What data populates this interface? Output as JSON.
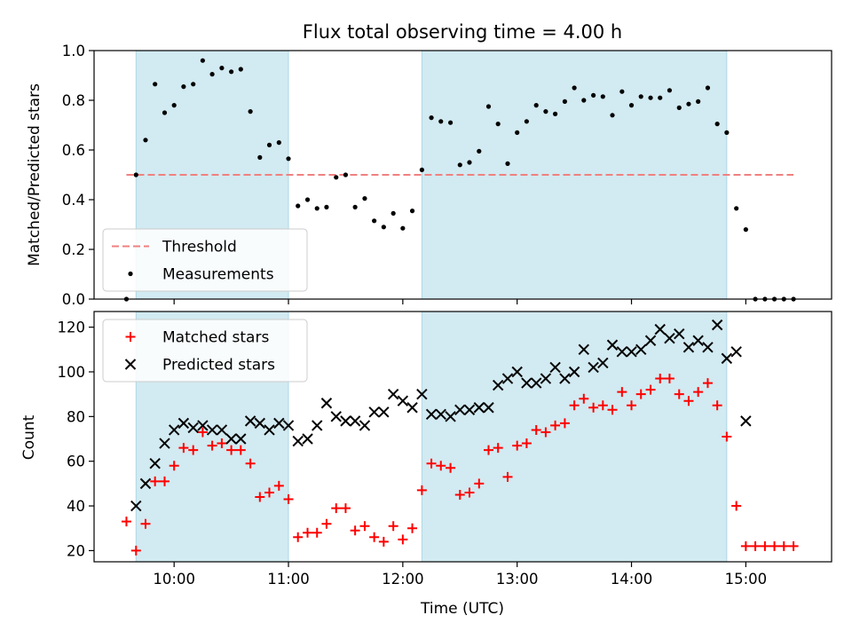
{
  "chart_data": {
    "title": "Flux total observing time = 4.00 h",
    "xlabel": "Time (UTC)",
    "x_unit": "hours UTC",
    "xlim": [
      9.3,
      15.75
    ],
    "x_ticks": [
      10,
      11,
      12,
      13,
      14,
      15
    ],
    "x_tick_labels": [
      "10:00",
      "11:00",
      "12:00",
      "13:00",
      "14:00",
      "15:00"
    ],
    "shaded_intervals": [
      [
        9.667,
        11.0
      ],
      [
        12.167,
        14.833
      ]
    ],
    "shade_color": "#add8e6",
    "x": [
      9.583,
      9.667,
      9.75,
      9.833,
      9.917,
      10.0,
      10.083,
      10.167,
      10.25,
      10.333,
      10.417,
      10.5,
      10.583,
      10.667,
      10.75,
      10.833,
      10.917,
      11.0,
      11.083,
      11.167,
      11.25,
      11.333,
      11.417,
      11.5,
      11.583,
      11.667,
      11.75,
      11.833,
      11.917,
      12.0,
      12.083,
      12.167,
      12.25,
      12.333,
      12.417,
      12.5,
      12.583,
      12.667,
      12.75,
      12.833,
      12.917,
      13.0,
      13.083,
      13.167,
      13.25,
      13.333,
      13.417,
      13.5,
      13.583,
      13.667,
      13.75,
      13.833,
      13.917,
      14.0,
      14.083,
      14.167,
      14.25,
      14.333,
      14.417,
      14.5,
      14.583,
      14.667,
      14.75,
      14.833,
      14.917,
      15.0,
      15.083,
      15.167,
      15.25,
      15.333,
      15.417
    ],
    "panels": [
      {
        "type": "scatter",
        "ylabel": "Matched/Predicted stars",
        "ylim": [
          0.0,
          1.0
        ],
        "y_ticks": [
          0.0,
          0.2,
          0.4,
          0.6,
          0.8,
          1.0
        ],
        "y_tick_labels": [
          "0.0",
          "0.2",
          "0.4",
          "0.6",
          "0.8",
          "1.0"
        ],
        "threshold": {
          "name": "Threshold",
          "value": 0.5,
          "x_range": [
            9.583,
            15.417
          ],
          "color": "#f08080"
        },
        "series": [
          {
            "name": "Measurements",
            "marker": "dot",
            "color": "#000000",
            "values": [
              0.0,
              0.5,
              0.64,
              0.865,
              0.75,
              0.78,
              0.855,
              0.865,
              0.96,
              0.905,
              0.93,
              0.915,
              0.925,
              0.755,
              0.57,
              0.62,
              0.63,
              0.565,
              0.375,
              0.4,
              0.365,
              0.37,
              0.49,
              0.5,
              0.37,
              0.405,
              0.315,
              0.29,
              0.345,
              0.285,
              0.355,
              0.52,
              0.73,
              0.715,
              0.71,
              0.54,
              0.55,
              0.595,
              0.775,
              0.705,
              0.545,
              0.67,
              0.715,
              0.78,
              0.755,
              0.745,
              0.795,
              0.85,
              0.8,
              0.82,
              0.815,
              0.74,
              0.835,
              0.78,
              0.815,
              0.81,
              0.81,
              0.84,
              0.77,
              0.785,
              0.795,
              0.85,
              0.705,
              0.67,
              0.365,
              0.28,
              0.0,
              0.0,
              0.0,
              0.0,
              0.0
            ]
          }
        ],
        "legend_position": "lower left"
      },
      {
        "type": "scatter",
        "ylabel": "Count",
        "ylim": [
          15,
          127
        ],
        "y_ticks": [
          20,
          40,
          60,
          80,
          100,
          120
        ],
        "y_tick_labels": [
          "20",
          "40",
          "60",
          "80",
          "100",
          "120"
        ],
        "series": [
          {
            "name": "Matched stars",
            "marker": "plus",
            "color": "#ff0000",
            "values": [
              33,
              20,
              32,
              51,
              51,
              58,
              66,
              65,
              73,
              67,
              68,
              65,
              65,
              59,
              44,
              46,
              49,
              43,
              26,
              28,
              28,
              32,
              39,
              39,
              29,
              31,
              26,
              24,
              31,
              25,
              30,
              47,
              59,
              58,
              57,
              45,
              46,
              50,
              65,
              66,
              53,
              67,
              68,
              74,
              73,
              76,
              77,
              85,
              88,
              84,
              85,
              83,
              91,
              85,
              90,
              92,
              97,
              97,
              90,
              87,
              91,
              95,
              85,
              71,
              40,
              22,
              22,
              22,
              22,
              22,
              22
            ]
          },
          {
            "name": "Predicted stars",
            "marker": "x",
            "color": "#000000",
            "values": [
              null,
              40,
              50,
              59,
              68,
              74,
              77,
              75,
              76,
              74,
              74,
              70,
              70,
              78,
              77,
              74,
              77,
              76,
              69,
              70,
              76,
              86,
              80,
              78,
              78,
              76,
              82,
              82,
              90,
              87,
              84,
              90,
              81,
              81,
              80,
              83,
              83,
              84,
              84,
              94,
              97,
              100,
              95,
              95,
              97,
              102,
              97,
              100,
              110,
              102,
              104,
              112,
              109,
              109,
              110,
              114,
              119,
              115,
              117,
              111,
              114,
              111,
              121,
              106,
              109,
              78,
              null,
              null,
              null,
              null,
              null
            ]
          }
        ],
        "legend_position": "upper left"
      }
    ]
  }
}
